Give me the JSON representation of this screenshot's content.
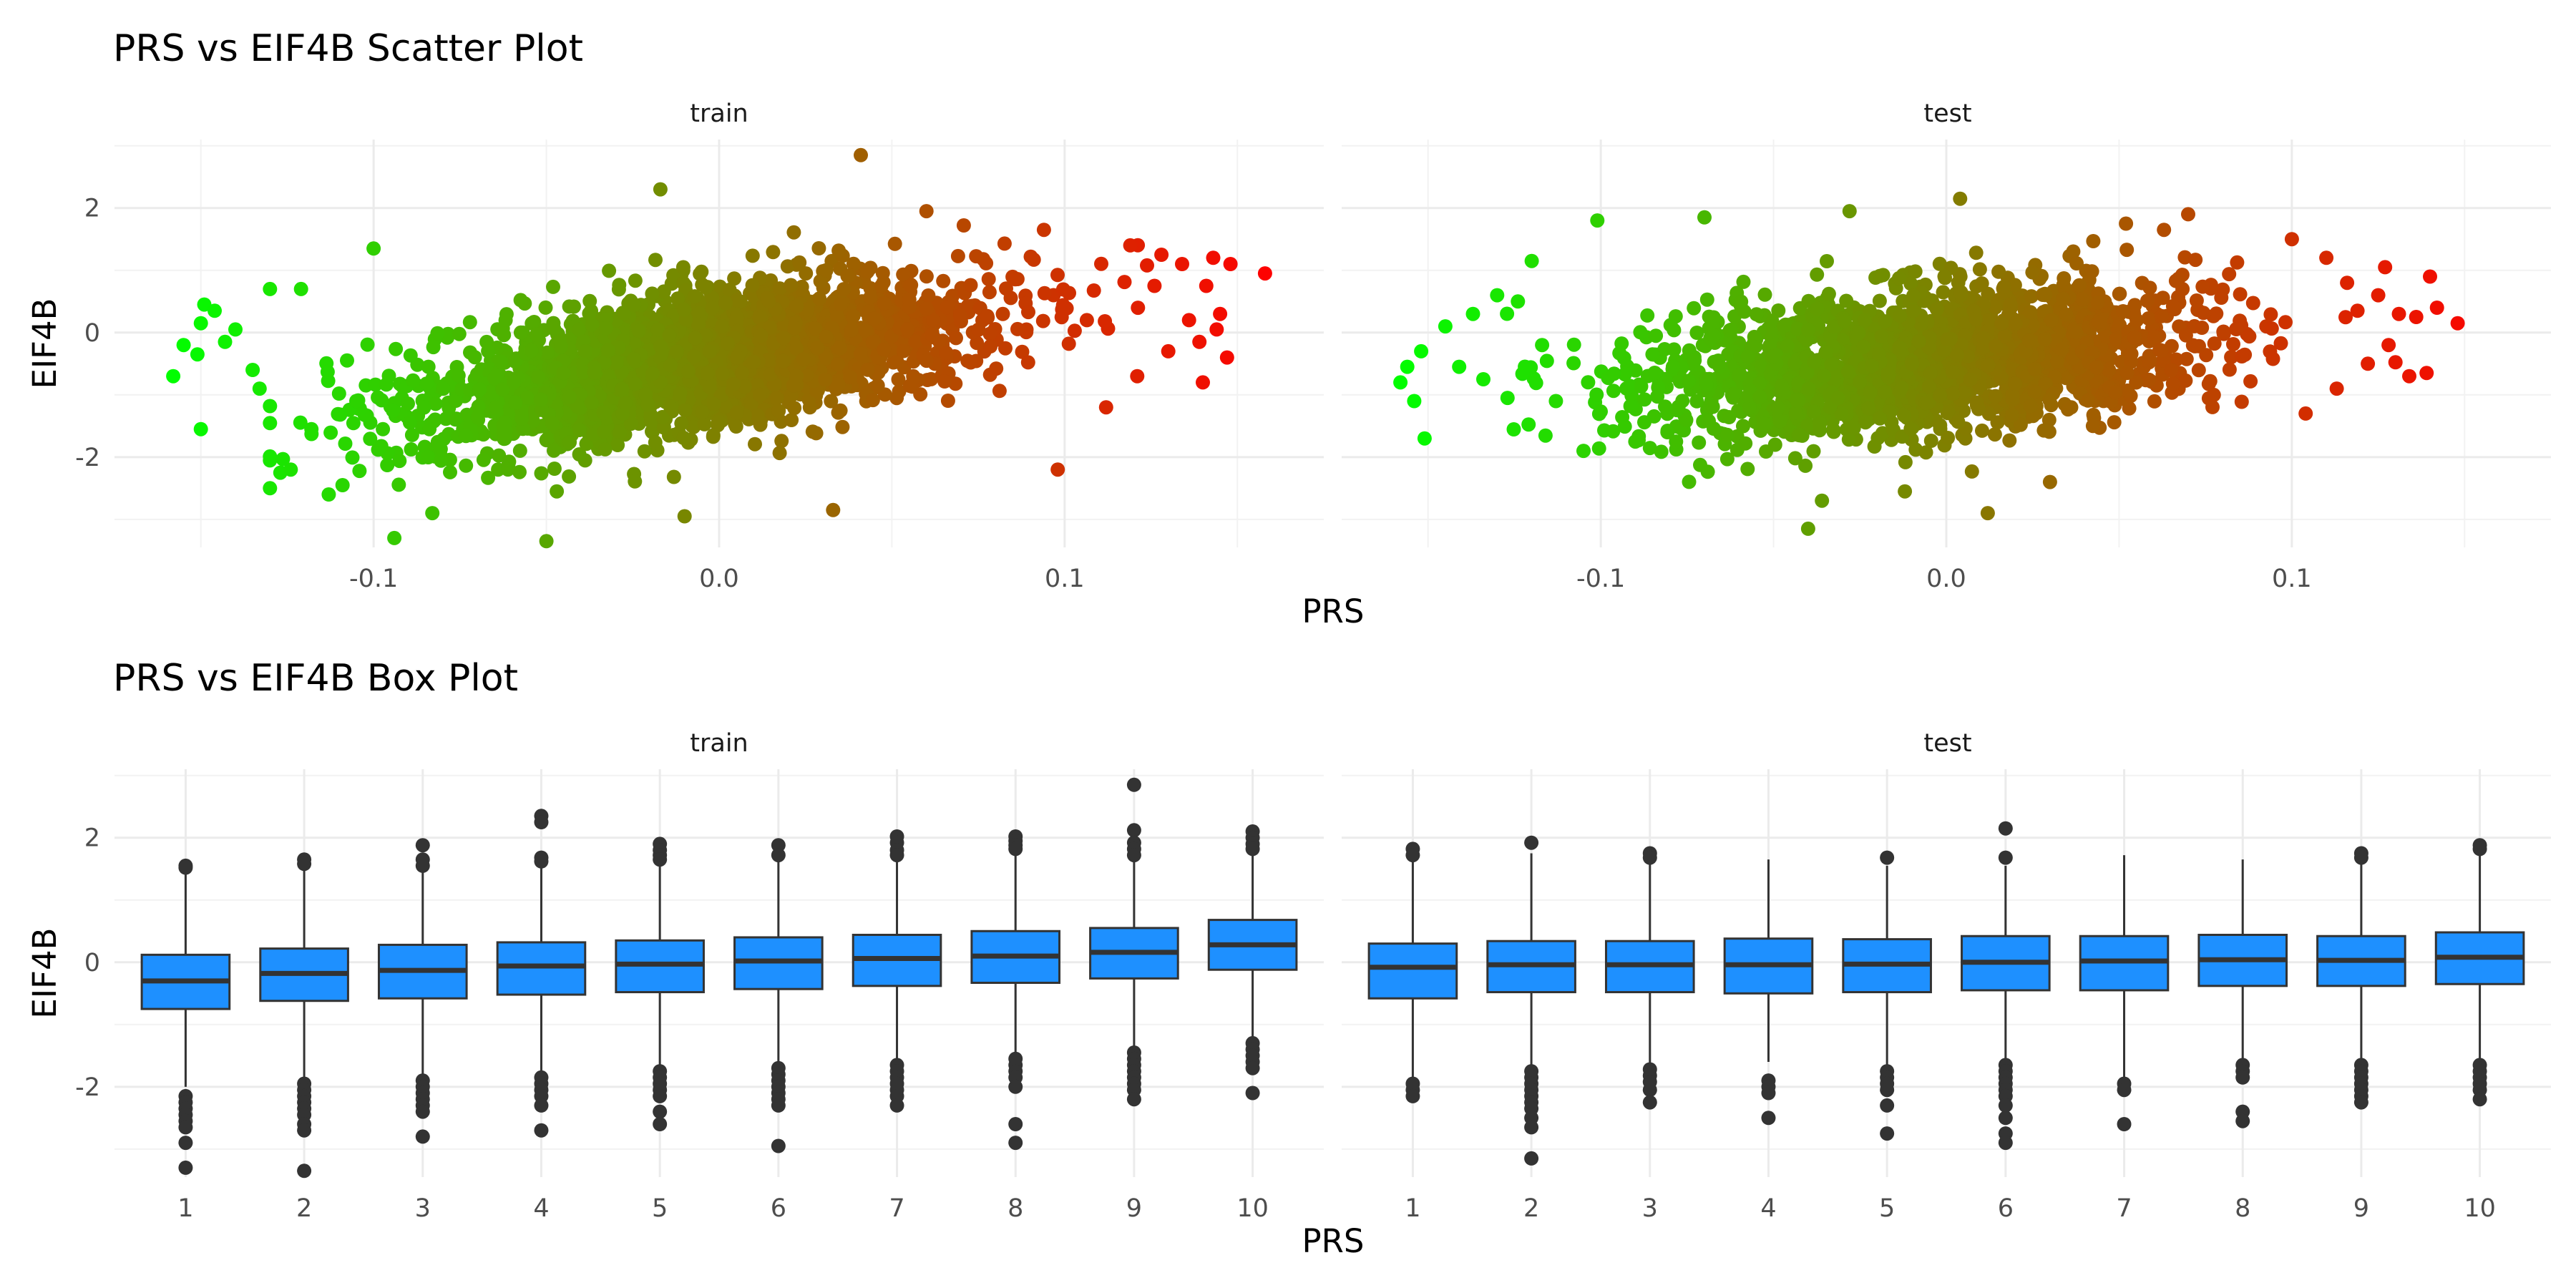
{
  "chart_data": [
    {
      "type": "scatter",
      "title": "PRS vs EIF4B Scatter Plot",
      "xlabel": "PRS",
      "ylabel": "EIF4B",
      "grid": true,
      "legend": "none",
      "xlim": [
        -0.175,
        0.175
      ],
      "ylim": [
        -3.45,
        3.1
      ],
      "x_ticks": [
        -0.1,
        0.0,
        0.1
      ],
      "x_tick_labels": [
        "-0.1",
        "0.0",
        "0.1"
      ],
      "y_ticks": [
        -2,
        0,
        2
      ],
      "y_tick_labels": [
        "-2",
        "0",
        "2"
      ],
      "color_scale": {
        "low": "#00ff00",
        "high": "#ff0000",
        "mapped_to": "PRS"
      },
      "trend_slope": 8.5,
      "panels": [
        {
          "name": "train",
          "highlight_points": [
            [
              -0.158,
              -0.7
            ],
            [
              -0.155,
              -0.2
            ],
            [
              -0.151,
              -0.35
            ],
            [
              -0.15,
              0.15
            ],
            [
              -0.149,
              0.45
            ],
            [
              -0.146,
              0.35
            ],
            [
              -0.143,
              -0.15
            ],
            [
              -0.14,
              0.05
            ],
            [
              -0.15,
              -1.55
            ],
            [
              -0.135,
              -0.6
            ],
            [
              -0.133,
              -0.9
            ],
            [
              -0.13,
              0.7
            ],
            [
              -0.127,
              -2.25
            ],
            [
              -0.124,
              -2.2
            ],
            [
              -0.121,
              0.7
            ],
            [
              -0.118,
              -1.55
            ],
            [
              -0.113,
              -2.6
            ],
            [
              -0.109,
              -2.45
            ],
            [
              -0.105,
              -1.1
            ],
            [
              -0.1,
              1.35
            ],
            [
              -0.094,
              -3.3
            ],
            [
              -0.083,
              -2.9
            ],
            [
              -0.05,
              -3.35
            ],
            [
              -0.047,
              -2.55
            ],
            [
              -0.01,
              -2.95
            ],
            [
              -0.017,
              2.3
            ],
            [
              0.033,
              -2.85
            ],
            [
              0.041,
              2.85
            ],
            [
              0.06,
              1.95
            ],
            [
              0.094,
              1.65
            ],
            [
              0.098,
              -2.2
            ],
            [
              0.112,
              -1.2
            ],
            [
              0.119,
              1.4
            ],
            [
              0.121,
              -0.7
            ],
            [
              0.126,
              0.75
            ],
            [
              0.13,
              -0.3
            ],
            [
              0.134,
              1.1
            ],
            [
              0.136,
              0.2
            ],
            [
              0.139,
              -0.15
            ],
            [
              0.141,
              0.75
            ],
            [
              0.143,
              1.2
            ],
            [
              0.145,
              0.3
            ],
            [
              0.147,
              -0.4
            ],
            [
              0.148,
              1.1
            ],
            [
              0.14,
              -0.8
            ],
            [
              0.158,
              0.95
            ],
            [
              0.144,
              0.05
            ],
            [
              0.128,
              1.25
            ]
          ]
        },
        {
          "name": "test",
          "highlight_points": [
            [
              -0.158,
              -0.8
            ],
            [
              -0.156,
              -0.55
            ],
            [
              -0.154,
              -1.1
            ],
            [
              -0.152,
              -0.3
            ],
            [
              -0.151,
              -1.7
            ],
            [
              -0.145,
              0.1
            ],
            [
              -0.141,
              -0.55
            ],
            [
              -0.137,
              0.3
            ],
            [
              -0.134,
              -0.75
            ],
            [
              -0.13,
              0.6
            ],
            [
              -0.127,
              -1.05
            ],
            [
              -0.124,
              0.5
            ],
            [
              -0.12,
              1.15
            ],
            [
              -0.117,
              -0.2
            ],
            [
              -0.113,
              -1.1
            ],
            [
              -0.105,
              -1.9
            ],
            [
              -0.101,
              1.8
            ],
            [
              -0.09,
              -1.75
            ],
            [
              -0.07,
              1.85
            ],
            [
              -0.04,
              -3.15
            ],
            [
              -0.036,
              -2.7
            ],
            [
              -0.028,
              1.95
            ],
            [
              -0.012,
              -2.55
            ],
            [
              0.004,
              2.15
            ],
            [
              0.012,
              -2.9
            ],
            [
              0.03,
              -2.4
            ],
            [
              0.052,
              1.75
            ],
            [
              0.063,
              1.65
            ],
            [
              0.07,
              1.9
            ],
            [
              0.1,
              1.5
            ],
            [
              0.104,
              -1.3
            ],
            [
              0.11,
              1.2
            ],
            [
              0.113,
              -0.9
            ],
            [
              0.116,
              0.8
            ],
            [
              0.119,
              0.35
            ],
            [
              0.122,
              -0.5
            ],
            [
              0.125,
              0.6
            ],
            [
              0.128,
              -0.2
            ],
            [
              0.131,
              0.3
            ],
            [
              0.134,
              -0.7
            ],
            [
              0.136,
              0.25
            ],
            [
              0.139,
              -0.65
            ],
            [
              0.142,
              0.4
            ],
            [
              0.148,
              0.15
            ],
            [
              0.14,
              0.9
            ],
            [
              0.127,
              1.05
            ]
          ]
        }
      ]
    },
    {
      "type": "box",
      "title": "PRS vs EIF4B Box Plot",
      "xlabel": "PRS",
      "ylabel": "EIF4B",
      "grid": true,
      "legend": "none",
      "box_color": "#1e90ff",
      "categories": [
        "1",
        "2",
        "3",
        "4",
        "5",
        "6",
        "7",
        "8",
        "9",
        "10"
      ],
      "ylim": [
        -3.45,
        3.1
      ],
      "y_ticks": [
        -2,
        0,
        2
      ],
      "y_tick_labels": [
        "-2",
        "0",
        "2"
      ],
      "panels": [
        {
          "name": "train",
          "boxes": [
            {
              "q1": -0.75,
              "median": -0.3,
              "q3": 0.12,
              "lower": -2.0,
              "upper": 1.45,
              "outliers": [
                1.55,
                1.52,
                -2.15,
                -2.25,
                -2.35,
                -2.45,
                -2.55,
                -2.65,
                -2.9,
                -3.3
              ]
            },
            {
              "q1": -0.62,
              "median": -0.18,
              "q3": 0.22,
              "lower": -1.85,
              "upper": 1.55,
              "outliers": [
                1.65,
                1.58,
                -1.95,
                -2.05,
                -2.15,
                -2.25,
                -2.35,
                -2.45,
                -2.6,
                -2.7,
                -3.35
              ]
            },
            {
              "q1": -0.58,
              "median": -0.13,
              "q3": 0.28,
              "lower": -1.8,
              "upper": 1.5,
              "outliers": [
                1.88,
                1.65,
                1.55,
                -1.9,
                -2.0,
                -2.1,
                -2.2,
                -2.3,
                -2.4,
                -2.8
              ]
            },
            {
              "q1": -0.52,
              "median": -0.06,
              "q3": 0.32,
              "lower": -1.75,
              "upper": 1.6,
              "outliers": [
                2.35,
                2.25,
                1.68,
                1.62,
                -1.85,
                -1.95,
                -2.05,
                -2.15,
                -2.3,
                -2.7
              ]
            },
            {
              "q1": -0.48,
              "median": -0.03,
              "q3": 0.35,
              "lower": -1.7,
              "upper": 1.6,
              "outliers": [
                1.9,
                1.8,
                1.72,
                1.65,
                -1.75,
                -1.85,
                -1.95,
                -2.05,
                -2.15,
                -2.4,
                -2.6
              ]
            },
            {
              "q1": -0.43,
              "median": 0.02,
              "q3": 0.4,
              "lower": -1.6,
              "upper": 1.65,
              "outliers": [
                1.88,
                1.72,
                -1.7,
                -1.8,
                -1.9,
                -2.0,
                -2.1,
                -2.2,
                -2.3,
                -2.95
              ]
            },
            {
              "q1": -0.38,
              "median": 0.06,
              "q3": 0.44,
              "lower": -1.55,
              "upper": 1.7,
              "outliers": [
                2.02,
                1.92,
                1.8,
                1.72,
                -1.65,
                -1.75,
                -1.85,
                -1.95,
                -2.05,
                -2.15,
                -2.3
              ]
            },
            {
              "q1": -0.33,
              "median": 0.1,
              "q3": 0.5,
              "lower": -1.45,
              "upper": 1.75,
              "outliers": [
                2.02,
                1.95,
                1.88,
                1.82,
                -1.55,
                -1.65,
                -1.75,
                -1.85,
                -2.0,
                -2.6,
                -2.9
              ]
            },
            {
              "q1": -0.26,
              "median": 0.16,
              "q3": 0.55,
              "lower": -1.4,
              "upper": 1.65,
              "outliers": [
                2.85,
                2.12,
                1.92,
                1.82,
                1.72,
                -1.45,
                -1.55,
                -1.65,
                -1.75,
                -1.85,
                -1.95,
                -2.05,
                -2.2
              ]
            },
            {
              "q1": -0.12,
              "median": 0.28,
              "q3": 0.68,
              "lower": -1.2,
              "upper": 1.75,
              "outliers": [
                2.1,
                2.0,
                1.9,
                1.82,
                -1.3,
                -1.4,
                -1.5,
                -1.6,
                -1.7,
                -2.1
              ]
            }
          ]
        },
        {
          "name": "test",
          "boxes": [
            {
              "q1": -0.58,
              "median": -0.08,
              "q3": 0.3,
              "lower": -1.85,
              "upper": 1.65,
              "outliers": [
                1.82,
                1.72,
                -1.95,
                -2.05,
                -2.15
              ]
            },
            {
              "q1": -0.48,
              "median": -0.04,
              "q3": 0.34,
              "lower": -1.65,
              "upper": 1.75,
              "outliers": [
                1.92,
                -1.75,
                -1.85,
                -1.95,
                -2.05,
                -2.15,
                -2.25,
                -2.35,
                -2.5,
                -2.65,
                -3.15
              ]
            },
            {
              "q1": -0.48,
              "median": -0.04,
              "q3": 0.34,
              "lower": -1.65,
              "upper": 1.6,
              "outliers": [
                1.75,
                1.68,
                -1.72,
                -1.82,
                -1.92,
                -2.05,
                -2.25
              ]
            },
            {
              "q1": -0.5,
              "median": -0.04,
              "q3": 0.38,
              "lower": -1.6,
              "upper": 1.65,
              "outliers": [
                -1.9,
                -2.0,
                -2.1,
                -2.5
              ]
            },
            {
              "q1": -0.48,
              "median": -0.03,
              "q3": 0.37,
              "lower": -1.65,
              "upper": 1.55,
              "outliers": [
                1.68,
                -1.75,
                -1.85,
                -1.95,
                -2.05,
                -2.3,
                -2.75
              ]
            },
            {
              "q1": -0.45,
              "median": 0.0,
              "q3": 0.42,
              "lower": -1.55,
              "upper": 1.55,
              "outliers": [
                2.15,
                1.68,
                -1.65,
                -1.75,
                -1.85,
                -1.95,
                -2.05,
                -2.15,
                -2.3,
                -2.5,
                -2.75,
                -2.9
              ]
            },
            {
              "q1": -0.45,
              "median": 0.02,
              "q3": 0.42,
              "lower": -1.85,
              "upper": 1.72,
              "outliers": [
                -1.95,
                -2.05,
                -2.6
              ]
            },
            {
              "q1": -0.38,
              "median": 0.04,
              "q3": 0.44,
              "lower": -1.55,
              "upper": 1.65,
              "outliers": [
                -1.65,
                -1.75,
                -1.85,
                -2.4,
                -2.55
              ]
            },
            {
              "q1": -0.38,
              "median": 0.03,
              "q3": 0.42,
              "lower": -1.55,
              "upper": 1.65,
              "outliers": [
                1.75,
                1.68,
                -1.65,
                -1.75,
                -1.85,
                -1.95,
                -2.05,
                -2.15,
                -2.25
              ]
            },
            {
              "q1": -0.35,
              "median": 0.08,
              "q3": 0.48,
              "lower": -1.55,
              "upper": 1.75,
              "outliers": [
                1.88,
                1.82,
                -1.65,
                -1.75,
                -1.85,
                -1.95,
                -2.05,
                -2.2
              ]
            }
          ]
        }
      ]
    }
  ]
}
